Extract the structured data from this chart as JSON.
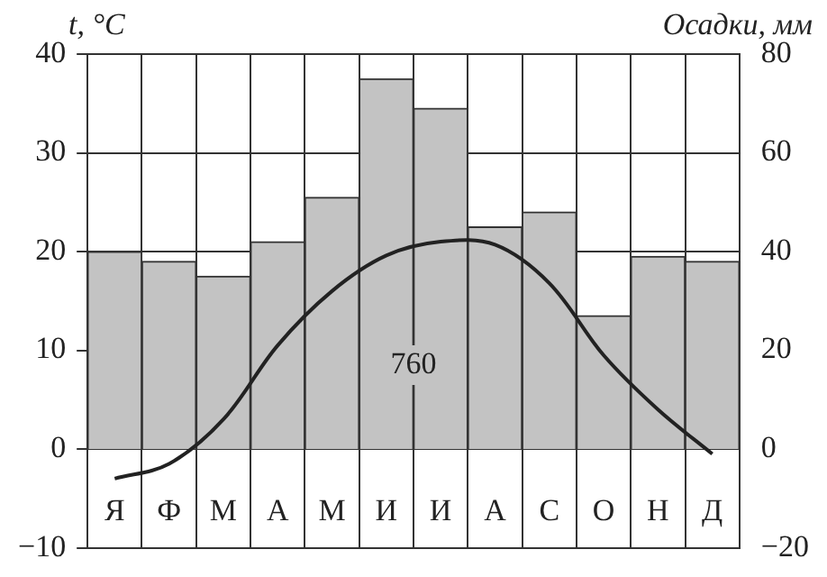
{
  "chart_data": {
    "type": "bar",
    "ylabel": "t, °C",
    "y2label": "Осадки, мм",
    "categories": [
      "Я",
      "Ф",
      "М",
      "А",
      "М",
      "И",
      "И",
      "А",
      "С",
      "О",
      "Н",
      "Д"
    ],
    "series": [
      {
        "axis": "y2",
        "color": "#c3c3c3",
        "values": [
          40,
          38,
          35,
          42,
          51,
          75,
          69,
          45,
          48,
          27,
          39,
          38
        ]
      },
      {
        "type": "line",
        "axis": "y",
        "color": "#222222",
        "values": [
          -3,
          -1.5,
          3,
          10.5,
          16,
          19.6,
          21,
          20.7,
          16.8,
          9.5,
          4,
          -0.5
        ]
      }
    ],
    "ylim": [
      -10,
      40
    ],
    "yticks": [
      -10,
      0,
      10,
      20,
      30,
      40
    ],
    "y2lim": [
      -20,
      80
    ],
    "y2ticks": [
      -20,
      0,
      20,
      40,
      60,
      80
    ],
    "grid": true,
    "marker": "none",
    "line_style": "solid",
    "annotations": [
      "760"
    ]
  }
}
